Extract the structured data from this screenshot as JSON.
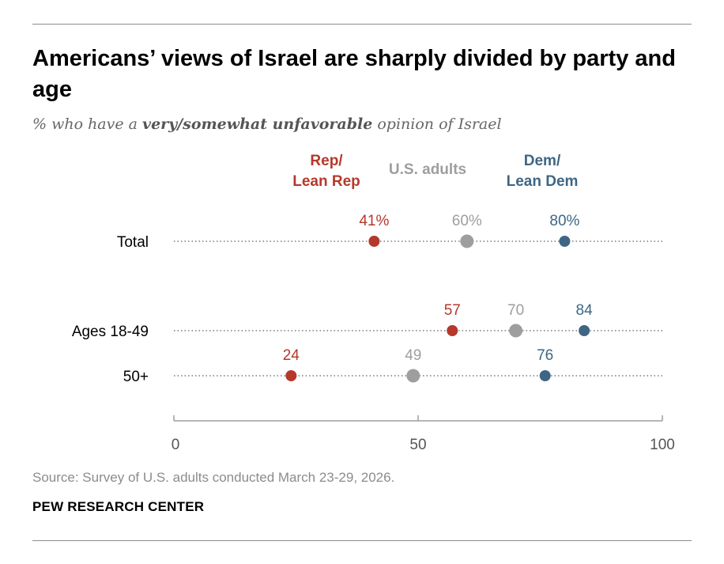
{
  "header": {
    "title": "Americans’ views of Israel are sharply divided by party and age",
    "subtitle_prefix": "% who have a ",
    "subtitle_emphasis": "very/somewhat unfavorable",
    "subtitle_suffix": " opinion of Israel"
  },
  "footer": {
    "source": "Source: Survey of U.S. adults conducted March 23-29, 2026.",
    "organization": "PEW RESEARCH CENTER"
  },
  "chart_data": {
    "type": "scatter",
    "subtype": "dot-plot",
    "xlim": [
      0,
      100
    ],
    "xticks": [
      0,
      50,
      100
    ],
    "categories": [
      "Total",
      "Ages 18-49",
      "50+"
    ],
    "series": [
      {
        "name": "Rep/\nLean Rep",
        "legend_lines": [
          "Rep/",
          "Lean Rep"
        ],
        "color": "#b5382b",
        "values": [
          41,
          57,
          24
        ],
        "labels": [
          "41%",
          "57",
          "24"
        ]
      },
      {
        "name": "U.S. adults",
        "legend_lines": [
          "U.S. adults"
        ],
        "color": "#9e9e9e",
        "values": [
          60,
          70,
          49
        ],
        "labels": [
          "60%",
          "70",
          "49"
        ]
      },
      {
        "name": "Dem/\nLean Dem",
        "legend_lines": [
          "Dem/",
          "Lean Dem"
        ],
        "color": "#3e6684",
        "values": [
          80,
          84,
          76
        ],
        "labels": [
          "80%",
          "84",
          "76"
        ]
      }
    ],
    "legend_position": "top",
    "grid": false
  }
}
